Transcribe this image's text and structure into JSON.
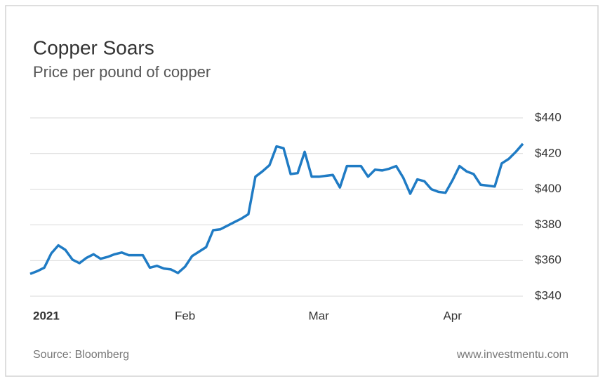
{
  "chart_data": {
    "type": "line",
    "title": "Copper Soars",
    "subtitle": "Price per pound of copper",
    "source": "Source: Bloomberg",
    "website": "www.investmentu.com",
    "categories": [
      "2021",
      null,
      null,
      null,
      null,
      null,
      null,
      null,
      null,
      null,
      null,
      null,
      null,
      null,
      null,
      null,
      null,
      null,
      null,
      null,
      null,
      null,
      "Feb",
      null,
      null,
      null,
      null,
      null,
      null,
      null,
      null,
      null,
      null,
      null,
      null,
      null,
      null,
      null,
      null,
      null,
      null,
      "Mar",
      null,
      null,
      null,
      null,
      null,
      null,
      null,
      null,
      null,
      null,
      null,
      null,
      null,
      null,
      null,
      null,
      null,
      null,
      "Apr",
      null,
      null,
      null,
      null,
      null,
      null,
      null,
      null,
      null,
      null
    ],
    "series": [
      {
        "name": "Copper",
        "color": "#1f7bc4",
        "values": [
          352.5,
          354,
          356,
          364,
          368.5,
          366,
          360.5,
          358.5,
          361.5,
          363.5,
          361,
          362,
          363.5,
          364.5,
          363,
          363,
          363,
          356,
          357,
          355.5,
          355,
          353,
          356.5,
          362.5,
          365,
          367.5,
          377,
          377.5,
          379.5,
          381.5,
          383.5,
          386,
          407,
          410,
          413.5,
          424,
          423,
          408.5,
          409,
          421,
          407,
          407,
          407.5,
          408,
          401,
          413,
          413,
          413,
          407,
          411,
          410.5,
          411.5,
          413,
          406.5,
          397.5,
          405.5,
          404.5,
          400,
          398.5,
          398,
          405,
          413,
          410,
          408.5,
          402.5,
          402,
          401.5,
          414.5,
          417,
          421,
          425.5
        ]
      }
    ],
    "ylim": [
      340,
      440
    ],
    "yticks": [
      {
        "value": 340,
        "label": "$340"
      },
      {
        "value": 360,
        "label": "$360"
      },
      {
        "value": 380,
        "label": "$380"
      },
      {
        "value": 400,
        "label": "$400"
      },
      {
        "value": 420,
        "label": "$420"
      },
      {
        "value": 440,
        "label": "$440"
      }
    ],
    "grid": true
  }
}
